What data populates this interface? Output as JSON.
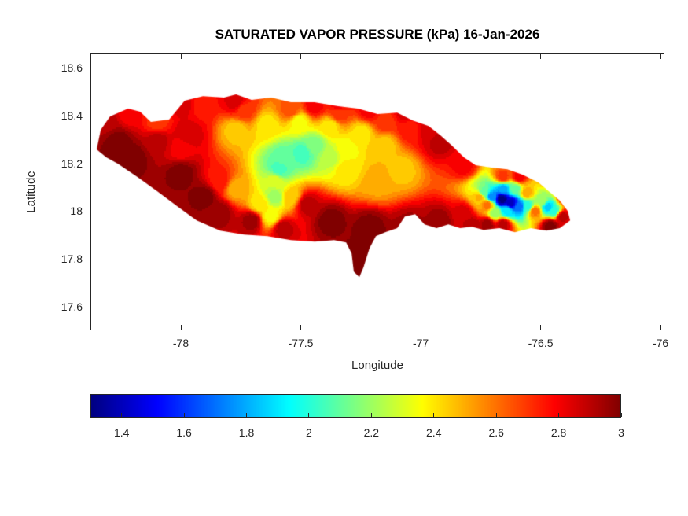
{
  "title": "SATURATED VAPOR PRESSURE (kPa) 16-Jan-2026",
  "chart_data": {
    "type": "heatmap",
    "subtype": "filled_contour_geographic_map",
    "region": "Jamaica",
    "title": "SATURATED VAPOR PRESSURE (kPa) 16-Jan-2026",
    "xlabel": "Longitude",
    "ylabel": "Latitude",
    "units": "kPa",
    "xlim": [
      -78.377,
      -75.984
    ],
    "ylim": [
      17.505,
      18.662
    ],
    "xticks": [
      -78,
      -77.5,
      -77,
      -76.5,
      -76
    ],
    "yticks": [
      17.6,
      17.8,
      18,
      18.2,
      18.4,
      18.6
    ],
    "grid": false,
    "colormap": "jet",
    "contour_step": 0.05,
    "colorbar": {
      "orientation": "horizontal",
      "clim": [
        1.3,
        3
      ],
      "ticks": [
        1.4,
        1.6,
        1.8,
        2,
        2.2,
        2.4,
        2.6,
        2.8,
        3
      ]
    },
    "boundary_lonlat": [
      [
        -78.351,
        18.261
      ],
      [
        -78.334,
        18.343
      ],
      [
        -78.295,
        18.399
      ],
      [
        -78.22,
        18.432
      ],
      [
        -78.17,
        18.419
      ],
      [
        -78.125,
        18.376
      ],
      [
        -78.049,
        18.386
      ],
      [
        -77.984,
        18.465
      ],
      [
        -77.908,
        18.484
      ],
      [
        -77.82,
        18.478
      ],
      [
        -77.77,
        18.491
      ],
      [
        -77.705,
        18.468
      ],
      [
        -77.623,
        18.478
      ],
      [
        -77.541,
        18.458
      ],
      [
        -77.443,
        18.458
      ],
      [
        -77.344,
        18.442
      ],
      [
        -77.262,
        18.432
      ],
      [
        -77.18,
        18.409
      ],
      [
        -77.098,
        18.415
      ],
      [
        -77.033,
        18.382
      ],
      [
        -76.967,
        18.359
      ],
      [
        -76.918,
        18.32
      ],
      [
        -76.869,
        18.277
      ],
      [
        -76.82,
        18.228
      ],
      [
        -76.771,
        18.195
      ],
      [
        -76.705,
        18.185
      ],
      [
        -76.639,
        18.178
      ],
      [
        -76.574,
        18.155
      ],
      [
        -76.508,
        18.122
      ],
      [
        -76.459,
        18.08
      ],
      [
        -76.42,
        18.047
      ],
      [
        -76.387,
        18.004
      ],
      [
        -76.377,
        17.964
      ],
      [
        -76.42,
        17.932
      ],
      [
        -76.476,
        17.922
      ],
      [
        -76.541,
        17.932
      ],
      [
        -76.607,
        17.915
      ],
      [
        -76.672,
        17.932
      ],
      [
        -76.738,
        17.925
      ],
      [
        -76.787,
        17.938
      ],
      [
        -76.836,
        17.932
      ],
      [
        -76.885,
        17.948
      ],
      [
        -76.934,
        17.932
      ],
      [
        -76.984,
        17.948
      ],
      [
        -77.023,
        17.991
      ],
      [
        -77.066,
        17.981
      ],
      [
        -77.098,
        17.932
      ],
      [
        -77.148,
        17.915
      ],
      [
        -77.187,
        17.899
      ],
      [
        -77.213,
        17.849
      ],
      [
        -77.239,
        17.767
      ],
      [
        -77.256,
        17.728
      ],
      [
        -77.279,
        17.751
      ],
      [
        -77.288,
        17.826
      ],
      [
        -77.311,
        17.872
      ],
      [
        -77.361,
        17.882
      ],
      [
        -77.442,
        17.876
      ],
      [
        -77.541,
        17.882
      ],
      [
        -77.639,
        17.899
      ],
      [
        -77.737,
        17.905
      ],
      [
        -77.836,
        17.922
      ],
      [
        -77.934,
        17.964
      ],
      [
        -78.016,
        18.024
      ],
      [
        -78.098,
        18.086
      ],
      [
        -78.18,
        18.145
      ],
      [
        -78.262,
        18.201
      ],
      [
        -78.311,
        18.228
      ]
    ],
    "samples_lon_lat_value": [
      [
        -78.262,
        18.294,
        3.0
      ],
      [
        -78.197,
        18.228,
        3.0
      ],
      [
        -78.098,
        18.294,
        2.9
      ],
      [
        -78.0,
        18.162,
        3.0
      ],
      [
        -77.902,
        18.063,
        3.0
      ],
      [
        -77.967,
        18.327,
        2.85
      ],
      [
        -77.836,
        17.997,
        2.95
      ],
      [
        -77.705,
        17.964,
        2.95
      ],
      [
        -77.574,
        17.932,
        2.9
      ],
      [
        -77.377,
        17.964,
        3.0
      ],
      [
        -77.279,
        17.8,
        3.0
      ],
      [
        -77.213,
        17.932,
        3.0
      ],
      [
        -77.049,
        17.932,
        2.95
      ],
      [
        -76.918,
        17.964,
        2.95
      ],
      [
        -76.787,
        17.948,
        2.9
      ],
      [
        -76.721,
        17.948,
        2.95
      ],
      [
        -76.459,
        17.942,
        3.0
      ],
      [
        -76.41,
        17.981,
        2.9
      ],
      [
        -76.918,
        18.294,
        2.9
      ],
      [
        -76.967,
        18.343,
        2.85
      ],
      [
        -76.82,
        18.195,
        2.8
      ],
      [
        -78.311,
        18.376,
        2.9
      ],
      [
        -78.213,
        18.409,
        2.8
      ],
      [
        -77.77,
        18.458,
        2.85
      ],
      [
        -77.443,
        18.442,
        2.8
      ],
      [
        -77.213,
        18.425,
        2.8
      ],
      [
        -78.0,
        18.261,
        2.8
      ],
      [
        -76.656,
        17.948,
        2.9
      ],
      [
        -76.82,
        17.997,
        2.85
      ],
      [
        -77.475,
        18.031,
        2.9
      ],
      [
        -78.098,
        18.376,
        2.7
      ],
      [
        -77.918,
        18.442,
        2.75
      ],
      [
        -77.738,
        18.425,
        2.7
      ],
      [
        -77.541,
        18.425,
        2.65
      ],
      [
        -77.344,
        18.409,
        2.7
      ],
      [
        -77.148,
        18.376,
        2.7
      ],
      [
        -77.049,
        18.343,
        2.75
      ],
      [
        -76.656,
        18.145,
        2.7
      ],
      [
        -76.59,
        18.145,
        2.8
      ],
      [
        -76.557,
        18.08,
        2.5
      ],
      [
        -76.754,
        18.063,
        2.5
      ],
      [
        -76.721,
        18.03,
        2.6
      ],
      [
        -76.525,
        18.004,
        2.6
      ],
      [
        -77.836,
        18.129,
        2.75
      ],
      [
        -77.77,
        18.343,
        2.45
      ],
      [
        -77.639,
        18.359,
        2.4
      ],
      [
        -77.508,
        18.376,
        2.35
      ],
      [
        -77.377,
        18.359,
        2.4
      ],
      [
        -77.246,
        18.327,
        2.4
      ],
      [
        -77.148,
        18.277,
        2.45
      ],
      [
        -77.311,
        18.261,
        2.35
      ],
      [
        -77.607,
        18.129,
        2.3
      ],
      [
        -77.672,
        18.031,
        2.4
      ],
      [
        -77.541,
        18.063,
        2.45
      ],
      [
        -77.77,
        18.096,
        2.5
      ],
      [
        -77.18,
        18.129,
        2.5
      ],
      [
        -77.082,
        18.178,
        2.45
      ],
      [
        -77.623,
        17.981,
        2.35
      ],
      [
        -77.574,
        18.228,
        2.1
      ],
      [
        -77.492,
        18.245,
        2.05
      ],
      [
        -77.443,
        18.277,
        2.15
      ],
      [
        -77.59,
        18.178,
        2.05
      ],
      [
        -77.607,
        18.063,
        2.2
      ],
      [
        -77.377,
        18.228,
        2.25
      ],
      [
        -77.311,
        18.178,
        2.4
      ],
      [
        -76.662,
        18.053,
        1.3
      ],
      [
        -76.623,
        18.037,
        1.4
      ],
      [
        -76.705,
        18.063,
        1.75
      ],
      [
        -76.59,
        18.024,
        1.7
      ],
      [
        -76.656,
        18.096,
        1.8
      ],
      [
        -76.639,
        18.004,
        1.9
      ],
      [
        -76.738,
        18.08,
        2.1
      ],
      [
        -76.551,
        18.024,
        2.0
      ],
      [
        -76.689,
        17.997,
        2.2
      ],
      [
        -76.607,
        18.096,
        2.1
      ],
      [
        -76.469,
        18.021,
        1.85
      ],
      [
        -76.443,
        18.004,
        2.0
      ],
      [
        -76.492,
        18.047,
        2.2
      ],
      [
        -76.443,
        18.145,
        2.85
      ],
      [
        -76.4,
        18.06,
        2.75
      ],
      [
        -77.344,
        18.45,
        2.8
      ],
      [
        -77.066,
        18.42,
        2.85
      ],
      [
        -77.984,
        18.45,
        2.85
      ]
    ]
  }
}
